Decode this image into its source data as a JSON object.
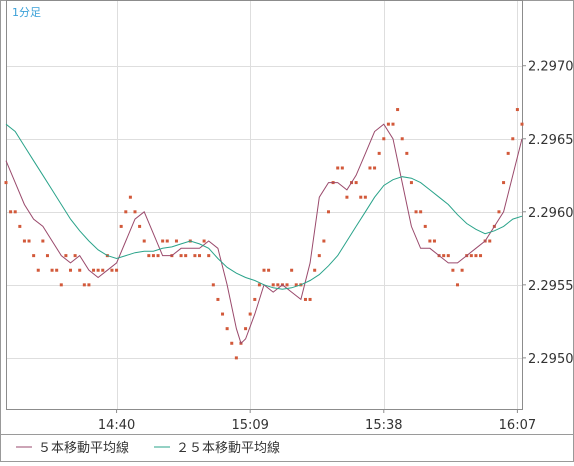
{
  "chart_data": {
    "type": "line",
    "timeframe_label": "1分足",
    "x_ticks": [
      "14:40",
      "15:09",
      "15:38",
      "16:07"
    ],
    "y_ticks": [
      "2.2950",
      "2.2955",
      "2.2960",
      "2.2965",
      "2.2970"
    ],
    "ylim": [
      2.29465,
      2.29745
    ],
    "x_start": "14:16",
    "x_end": "16:08",
    "grid": true,
    "legend_position": "bottom-left",
    "legend": [
      {
        "label": "５本移動平均線",
        "color": "#9a4a6c"
      },
      {
        "label": "２５本移動平均線",
        "color": "#2aa38a"
      }
    ],
    "points": {
      "color": "#d2593a",
      "x": [
        "14:16",
        "14:17",
        "14:18",
        "14:19",
        "14:20",
        "14:21",
        "14:22",
        "14:23",
        "14:24",
        "14:25",
        "14:26",
        "14:27",
        "14:28",
        "14:29",
        "14:30",
        "14:31",
        "14:32",
        "14:33",
        "14:34",
        "14:35",
        "14:36",
        "14:37",
        "14:38",
        "14:39",
        "14:40",
        "14:41",
        "14:42",
        "14:43",
        "14:44",
        "14:45",
        "14:46",
        "14:47",
        "14:48",
        "14:49",
        "14:50",
        "14:51",
        "14:52",
        "14:53",
        "14:54",
        "14:55",
        "14:56",
        "14:57",
        "14:58",
        "14:59",
        "15:00",
        "15:01",
        "15:02",
        "15:03",
        "15:04",
        "15:05",
        "15:06",
        "15:07",
        "15:08",
        "15:09",
        "15:10",
        "15:11",
        "15:12",
        "15:13",
        "15:14",
        "15:15",
        "15:16",
        "15:17",
        "15:18",
        "15:19",
        "15:20",
        "15:21",
        "15:22",
        "15:23",
        "15:24",
        "15:25",
        "15:26",
        "15:27",
        "15:28",
        "15:29",
        "15:30",
        "15:31",
        "15:32",
        "15:33",
        "15:34",
        "15:35",
        "15:36",
        "15:37",
        "15:38",
        "15:39",
        "15:40",
        "15:41",
        "15:42",
        "15:43",
        "15:44",
        "15:45",
        "15:46",
        "15:47",
        "15:48",
        "15:49",
        "15:50",
        "15:51",
        "15:52",
        "15:53",
        "15:54",
        "15:55",
        "15:56",
        "15:57",
        "15:58",
        "15:59",
        "16:00",
        "16:01",
        "16:02",
        "16:03",
        "16:04",
        "16:05",
        "16:06",
        "16:07",
        "16:08"
      ],
      "y": [
        2.2962,
        2.296,
        2.296,
        2.2959,
        2.2958,
        2.2958,
        2.2957,
        2.2956,
        2.2958,
        2.2957,
        2.2956,
        2.2956,
        2.2955,
        2.2957,
        2.2956,
        2.2957,
        2.2956,
        2.2955,
        2.2955,
        2.2956,
        2.2956,
        2.2956,
        2.2957,
        2.2956,
        2.2956,
        2.2959,
        2.296,
        2.2961,
        2.296,
        2.2959,
        2.2958,
        2.2957,
        2.2957,
        2.2957,
        2.2958,
        2.2958,
        2.2957,
        2.2958,
        2.2957,
        2.2957,
        2.2958,
        2.2957,
        2.2957,
        2.2958,
        2.2957,
        2.2955,
        2.2954,
        2.2953,
        2.2952,
        2.2951,
        2.295,
        2.2951,
        2.2952,
        2.2953,
        2.2954,
        2.2955,
        2.2956,
        2.2956,
        2.2955,
        2.2955,
        2.2955,
        2.2955,
        2.2956,
        2.2955,
        2.2955,
        2.2954,
        2.2954,
        2.2956,
        2.2957,
        2.2958,
        2.296,
        2.2962,
        2.2963,
        2.2963,
        2.2961,
        2.2962,
        2.2962,
        2.2961,
        2.2961,
        2.2963,
        2.2963,
        2.2964,
        2.2965,
        2.2966,
        2.2966,
        2.2967,
        2.2965,
        2.2964,
        2.2962,
        2.296,
        2.296,
        2.2959,
        2.2958,
        2.2958,
        2.2957,
        2.2957,
        2.2957,
        2.2956,
        2.2955,
        2.2956,
        2.2957,
        2.2957,
        2.2957,
        2.2957,
        2.2958,
        2.2958,
        2.2959,
        2.296,
        2.2962,
        2.2964,
        2.2965,
        2.2967,
        2.2966
      ]
    },
    "series": [
      {
        "name": "５本移動平均線",
        "color": "#9a4a6c",
        "x": [
          "14:16",
          "14:18",
          "14:20",
          "14:22",
          "14:24",
          "14:26",
          "14:28",
          "14:30",
          "14:32",
          "14:34",
          "14:36",
          "14:38",
          "14:40",
          "14:42",
          "14:44",
          "14:46",
          "14:48",
          "14:50",
          "14:52",
          "14:54",
          "14:56",
          "14:58",
          "15:00",
          "15:02",
          "15:04",
          "15:06",
          "15:07",
          "15:08",
          "15:10",
          "15:12",
          "15:14",
          "15:16",
          "15:18",
          "15:20",
          "15:22",
          "15:24",
          "15:26",
          "15:28",
          "15:30",
          "15:32",
          "15:34",
          "15:36",
          "15:38",
          "15:40",
          "15:42",
          "15:44",
          "15:46",
          "15:48",
          "15:50",
          "15:52",
          "15:54",
          "15:56",
          "15:58",
          "16:00",
          "16:02",
          "16:04",
          "16:06",
          "16:08"
        ],
        "y": [
          2.29635,
          2.2962,
          2.29605,
          2.29595,
          2.2959,
          2.2958,
          2.2957,
          2.29565,
          2.2957,
          2.2956,
          2.29555,
          2.2956,
          2.29565,
          2.2958,
          2.29595,
          2.296,
          2.29585,
          2.2957,
          2.2957,
          2.29575,
          2.29575,
          2.29575,
          2.2958,
          2.29575,
          2.2955,
          2.2952,
          2.2951,
          2.29513,
          2.2953,
          2.2955,
          2.29545,
          2.2955,
          2.29545,
          2.2954,
          2.29565,
          2.2961,
          2.2962,
          2.2962,
          2.29615,
          2.29625,
          2.2964,
          2.29655,
          2.2966,
          2.2965,
          2.2962,
          2.2959,
          2.29575,
          2.29575,
          2.2957,
          2.29565,
          2.29565,
          2.2957,
          2.29575,
          2.2958,
          2.2959,
          2.296,
          2.29625,
          2.2965
        ]
      },
      {
        "name": "２５本移動平均線",
        "color": "#2aa38a",
        "x": [
          "14:16",
          "14:18",
          "14:20",
          "14:22",
          "14:24",
          "14:26",
          "14:28",
          "14:30",
          "14:32",
          "14:34",
          "14:36",
          "14:38",
          "14:40",
          "14:42",
          "14:44",
          "14:46",
          "14:48",
          "14:50",
          "14:52",
          "14:54",
          "14:56",
          "14:58",
          "15:00",
          "15:02",
          "15:04",
          "15:06",
          "15:08",
          "15:10",
          "15:12",
          "15:14",
          "15:16",
          "15:18",
          "15:20",
          "15:22",
          "15:24",
          "15:26",
          "15:28",
          "15:30",
          "15:32",
          "15:34",
          "15:36",
          "15:38",
          "15:40",
          "15:42",
          "15:44",
          "15:46",
          "15:48",
          "15:50",
          "15:52",
          "15:54",
          "15:56",
          "15:58",
          "16:00",
          "16:02",
          "16:04",
          "16:06",
          "16:08"
        ],
        "y": [
          2.2966,
          2.29655,
          2.29645,
          2.29635,
          2.29625,
          2.29615,
          2.29605,
          2.29595,
          2.29587,
          2.2958,
          2.29574,
          2.2957,
          2.29568,
          2.2957,
          2.29572,
          2.29573,
          2.29573,
          2.29575,
          2.29576,
          2.29578,
          2.2958,
          2.29578,
          2.29575,
          2.29568,
          2.29562,
          2.29558,
          2.29555,
          2.29553,
          2.2955,
          2.29548,
          2.29547,
          2.29548,
          2.2955,
          2.29553,
          2.29557,
          2.29563,
          2.2957,
          2.2958,
          2.2959,
          2.296,
          2.2961,
          2.29618,
          2.29622,
          2.29624,
          2.29623,
          2.2962,
          2.29615,
          2.2961,
          2.29605,
          2.29598,
          2.29592,
          2.29588,
          2.29585,
          2.29587,
          2.2959,
          2.29595,
          2.29597
        ]
      }
    ]
  }
}
